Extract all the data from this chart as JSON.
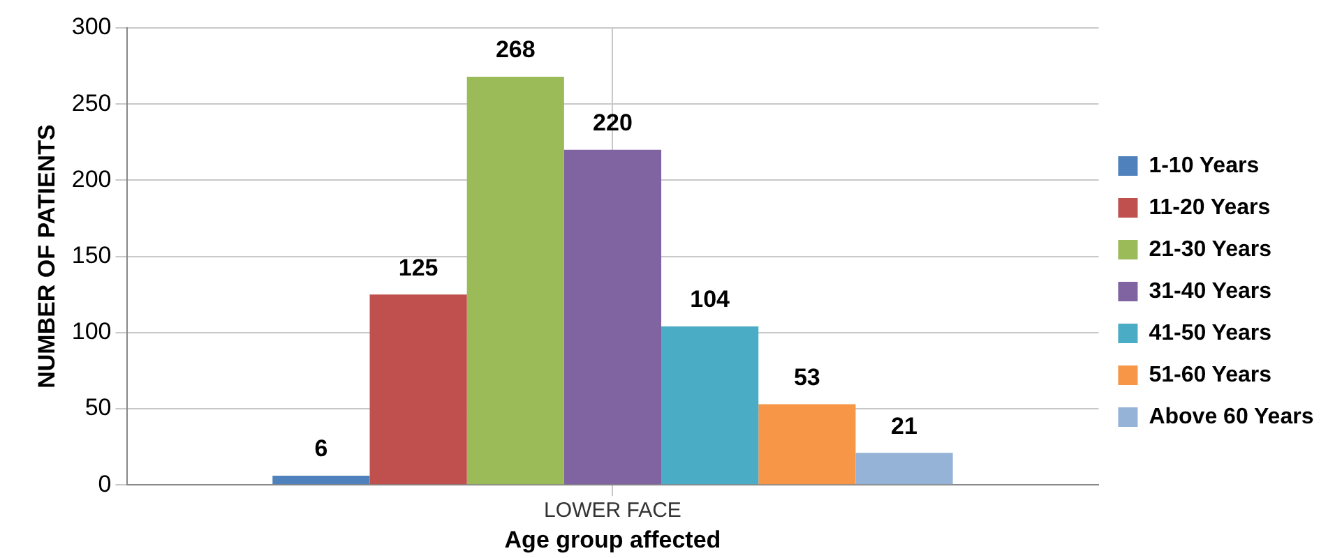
{
  "chart_data": {
    "type": "bar",
    "categories": [
      "LOWER FACE"
    ],
    "series": [
      {
        "name": "1-10 Years",
        "color": "#4f81bd",
        "values": [
          6
        ]
      },
      {
        "name": "11-20 Years",
        "color": "#c0504d",
        "values": [
          125
        ]
      },
      {
        "name": "21-30 Years",
        "color": "#9bbb59",
        "values": [
          268
        ]
      },
      {
        "name": "31-40 Years",
        "color": "#8064a2",
        "values": [
          220
        ]
      },
      {
        "name": "41-50 Years",
        "color": "#4bacc6",
        "values": [
          104
        ]
      },
      {
        "name": "51-60 Years",
        "color": "#f79646",
        "values": [
          53
        ]
      },
      {
        "name": "Above 60 Years",
        "color": "#95b3d7",
        "values": [
          21
        ]
      }
    ],
    "xlabel": "Age group affected",
    "ylabel": "NUMBER OF PATIENTS",
    "ylim": [
      0,
      300
    ],
    "yticks": [
      0,
      50,
      100,
      150,
      200,
      250,
      300
    ],
    "grid": true,
    "legend": "right",
    "data_labels": true
  }
}
